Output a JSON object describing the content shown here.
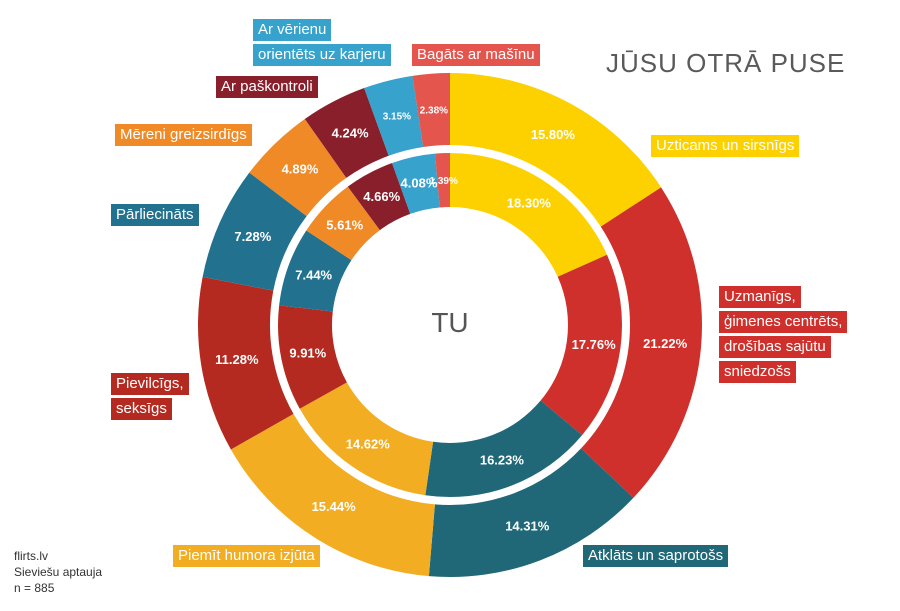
{
  "title": "JŪSU OTRĀ PUSE",
  "center_label": "TU",
  "source_lines": [
    "flirts.lv",
    "Sieviešu aptauja",
    "n = 885"
  ],
  "chart_data": {
    "type": "donut",
    "categories": [
      "Uzticams un sirsnīgs",
      "Uzmanīgs, ģimenes centrēts, drošības sajūtu sniedzošs",
      "Atklāts un saprotošs",
      "Piemīt humora izjūta",
      "Pievilcīgs, seksīgs",
      "Pārliecināts",
      "Mēreni greizsirdīgs",
      "Ar paškontroli",
      "Ar vērienu orientēts uz karjeru",
      "Bagāts ar mašīnu"
    ],
    "colors": [
      "#fdd100",
      "#d0302b",
      "#206877",
      "#f2ad22",
      "#b42a20",
      "#22728f",
      "#f08a27",
      "#8a1f2c",
      "#37a2cc",
      "#e4554d"
    ],
    "series": [
      {
        "values": [
          15.8,
          21.22,
          14.31,
          15.44,
          11.28,
          7.28,
          4.89,
          4.24,
          3.15,
          2.38
        ],
        "labels": [
          "15.80%",
          "21.22%",
          "14.31%",
          "15.44%",
          "11.28%",
          "7.28%",
          "4.89%",
          "4.24%",
          "3.15%",
          "2.38%"
        ]
      },
      {
        "values": [
          18.3,
          17.76,
          16.23,
          14.62,
          9.91,
          7.44,
          5.61,
          4.66,
          4.08,
          1.39
        ],
        "labels": [
          "18.30%",
          "17.76%",
          "16.23%",
          "14.62%",
          "9.91%",
          "7.44%",
          "5.61%",
          "4.66%",
          "4.08%",
          "1.39%"
        ]
      }
    ]
  },
  "legend": [
    {
      "lines": [
        "Uzticams un sirsnīgs"
      ],
      "color": "#fdd100"
    },
    {
      "lines": [
        "Uzmanīgs,",
        "ģimenes centrēts,",
        "drošības sajūtu",
        "sniedzošs"
      ],
      "color": "#d0302b"
    },
    {
      "lines": [
        "Atklāts un saprotošs"
      ],
      "color": "#206877"
    },
    {
      "lines": [
        "Piemīt humora izjūta"
      ],
      "color": "#f2ad22"
    },
    {
      "lines": [
        "Pievilcīgs,",
        "seksīgs"
      ],
      "color": "#b42a20"
    },
    {
      "lines": [
        "Pārliecināts"
      ],
      "color": "#22728f"
    },
    {
      "lines": [
        "Mēreni greizsirdīgs"
      ],
      "color": "#f08a27"
    },
    {
      "lines": [
        "Ar paškontroli"
      ],
      "color": "#8a1f2c"
    },
    {
      "lines": [
        "Ar vērienu",
        "orientēts uz karjeru"
      ],
      "color": "#37a2cc"
    },
    {
      "lines": [
        "Bagāts ar mašīnu"
      ],
      "color": "#e4554d"
    }
  ]
}
